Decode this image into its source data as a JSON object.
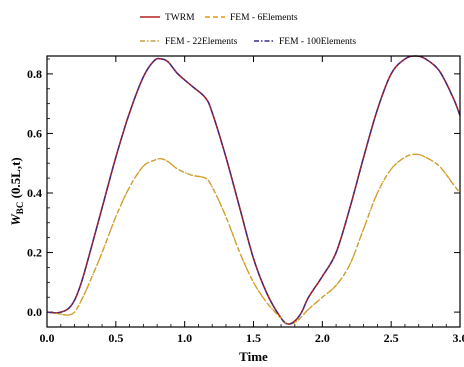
{
  "chart_data": {
    "type": "line",
    "xlabel": "Time",
    "ylabel": "W_BC (0.5L,t)",
    "ylabel_parts": {
      "main": "W",
      "sub": "BC",
      "rest": " (0.5L,t)"
    },
    "xlim": [
      0,
      3
    ],
    "ylim": [
      -0.05,
      0.86
    ],
    "xticks": [
      0.0,
      0.5,
      1.0,
      1.5,
      2.0,
      2.5,
      3.0
    ],
    "xtick_labels": [
      "0.0",
      "0.5",
      "1.0",
      "1.5",
      "2.0",
      "2.5",
      "3.0"
    ],
    "yticks": [
      0.0,
      0.2,
      0.4,
      0.6,
      0.8
    ],
    "ytick_labels": [
      "0.0",
      "0.2",
      "0.4",
      "0.6",
      "0.8"
    ],
    "legend": {
      "placement": "top",
      "entries": [
        {
          "name": "TWRM",
          "color": "#b22222",
          "style": "solid"
        },
        {
          "name": "FEM - 6Elements",
          "color": "#e69a00",
          "style": "dashed"
        },
        {
          "name": "FEM - 22Elements",
          "color": "#c8a040",
          "style": "dashdot"
        },
        {
          "name": "FEM - 100Elements",
          "color": "#3a2a8a",
          "style": "dashdot"
        }
      ]
    },
    "series": [
      {
        "name": "TWRM",
        "color": "#b22222",
        "style": "solid",
        "x": [
          0,
          0.08,
          0.15,
          0.2,
          0.25,
          0.3,
          0.4,
          0.5,
          0.6,
          0.7,
          0.78,
          0.83,
          0.88,
          0.95,
          1.05,
          1.15,
          1.2,
          1.3,
          1.4,
          1.5,
          1.6,
          1.7,
          1.75,
          1.8,
          1.85,
          1.9,
          2.0,
          2.1,
          2.2,
          2.3,
          2.4,
          2.5,
          2.6,
          2.68,
          2.75,
          2.85,
          2.95,
          3.0
        ],
        "y": [
          0.0,
          -0.002,
          0.01,
          0.04,
          0.1,
          0.18,
          0.35,
          0.52,
          0.67,
          0.79,
          0.845,
          0.85,
          0.84,
          0.8,
          0.76,
          0.72,
          0.67,
          0.52,
          0.35,
          0.18,
          0.06,
          -0.02,
          -0.04,
          -0.03,
          0.0,
          0.05,
          0.12,
          0.2,
          0.35,
          0.52,
          0.68,
          0.8,
          0.85,
          0.86,
          0.85,
          0.81,
          0.72,
          0.66
        ]
      },
      {
        "name": "FEM - 6Elements",
        "color": "#e69a00",
        "style": "dashed",
        "x": [
          0,
          0.08,
          0.15,
          0.2,
          0.25,
          0.3,
          0.4,
          0.5,
          0.6,
          0.7,
          0.78,
          0.83,
          0.88,
          0.95,
          1.05,
          1.15,
          1.2,
          1.3,
          1.4,
          1.5,
          1.6,
          1.7,
          1.75,
          1.8,
          1.85,
          1.9,
          2.0,
          2.1,
          2.2,
          2.3,
          2.4,
          2.5,
          2.6,
          2.68,
          2.75,
          2.85,
          2.95,
          3.0
        ],
        "y": [
          0.0,
          -0.005,
          -0.01,
          0.0,
          0.04,
          0.09,
          0.2,
          0.32,
          0.42,
          0.49,
          0.51,
          0.515,
          0.505,
          0.48,
          0.46,
          0.45,
          0.42,
          0.32,
          0.2,
          0.1,
          0.03,
          -0.02,
          -0.04,
          -0.035,
          -0.015,
          0.01,
          0.05,
          0.09,
          0.16,
          0.28,
          0.4,
          0.48,
          0.52,
          0.53,
          0.52,
          0.49,
          0.43,
          0.4
        ]
      },
      {
        "name": "FEM - 22Elements",
        "color": "#c8a040",
        "style": "dashdot",
        "x": [
          0,
          0.08,
          0.15,
          0.2,
          0.25,
          0.3,
          0.4,
          0.5,
          0.6,
          0.7,
          0.78,
          0.83,
          0.88,
          0.95,
          1.05,
          1.15,
          1.2,
          1.3,
          1.4,
          1.5,
          1.6,
          1.7,
          1.75,
          1.8,
          1.85,
          1.9,
          2.0,
          2.1,
          2.2,
          2.3,
          2.4,
          2.5,
          2.6,
          2.68,
          2.75,
          2.85,
          2.95,
          3.0
        ],
        "y": [
          0.0,
          -0.005,
          -0.01,
          0.0,
          0.04,
          0.09,
          0.2,
          0.32,
          0.42,
          0.49,
          0.51,
          0.515,
          0.505,
          0.48,
          0.46,
          0.45,
          0.42,
          0.32,
          0.2,
          0.1,
          0.03,
          -0.02,
          -0.04,
          -0.035,
          -0.015,
          0.01,
          0.05,
          0.09,
          0.16,
          0.28,
          0.4,
          0.48,
          0.52,
          0.53,
          0.52,
          0.49,
          0.43,
          0.4
        ]
      },
      {
        "name": "FEM - 100Elements",
        "color": "#3a2a8a",
        "style": "dashdot",
        "x": [
          0,
          0.08,
          0.15,
          0.2,
          0.25,
          0.3,
          0.4,
          0.5,
          0.6,
          0.7,
          0.78,
          0.83,
          0.88,
          0.95,
          1.05,
          1.15,
          1.2,
          1.3,
          1.4,
          1.5,
          1.6,
          1.7,
          1.75,
          1.8,
          1.85,
          1.9,
          2.0,
          2.1,
          2.2,
          2.3,
          2.4,
          2.5,
          2.6,
          2.68,
          2.75,
          2.85,
          2.95,
          3.0
        ],
        "y": [
          0.0,
          -0.002,
          0.01,
          0.04,
          0.1,
          0.18,
          0.35,
          0.52,
          0.67,
          0.79,
          0.845,
          0.85,
          0.84,
          0.8,
          0.76,
          0.72,
          0.67,
          0.52,
          0.35,
          0.18,
          0.06,
          -0.02,
          -0.04,
          -0.03,
          0.0,
          0.05,
          0.12,
          0.2,
          0.35,
          0.52,
          0.68,
          0.8,
          0.85,
          0.86,
          0.85,
          0.81,
          0.72,
          0.66
        ]
      }
    ]
  }
}
